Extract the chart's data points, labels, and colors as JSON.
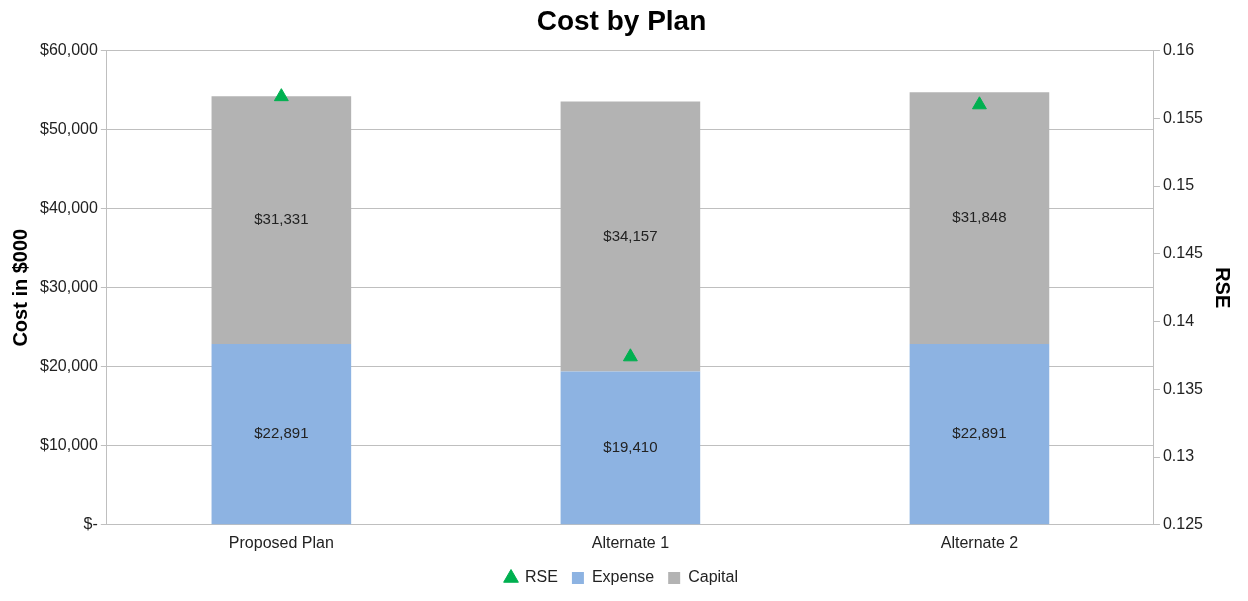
{
  "chart_data": {
    "type": "bar",
    "title": "Cost by Plan",
    "ylabel": "Cost in $000",
    "y2label": "RSE",
    "categories": [
      "Proposed Plan",
      "Alternate 1",
      "Alternate 2"
    ],
    "stacked": true,
    "series": [
      {
        "name": "Expense",
        "color": "#8db3e2",
        "values": [
          22891,
          19410,
          22891
        ],
        "value_labels": [
          "$22,891",
          "$19,410",
          "$22,891"
        ]
      },
      {
        "name": "Capital",
        "color": "#b3b3b3",
        "values": [
          31331,
          34157,
          31848
        ],
        "value_labels": [
          "$31,331",
          "$34,157",
          "$31,848"
        ]
      },
      {
        "name": "RSE",
        "type": "scatter",
        "axis": "y2",
        "marker": "triangle",
        "color": "#00b050",
        "x": [
          "Proposed Plan",
          "Alternate 1",
          "Alternate 2"
        ],
        "values": [
          0.1566,
          0.1374,
          0.156
        ]
      }
    ],
    "ylim": [
      0,
      60000
    ],
    "yticks": [
      {
        "value": 0,
        "label": "$-"
      },
      {
        "value": 10000,
        "label": "$10,000"
      },
      {
        "value": 20000,
        "label": "$20,000"
      },
      {
        "value": 30000,
        "label": "$30,000"
      },
      {
        "value": 40000,
        "label": "$40,000"
      },
      {
        "value": 50000,
        "label": "$50,000"
      },
      {
        "value": 60000,
        "label": "$60,000"
      }
    ],
    "y2lim": [
      0.125,
      0.16
    ],
    "y2ticks": [
      0.125,
      0.13,
      0.135,
      0.14,
      0.145,
      0.15,
      0.155,
      0.16
    ],
    "grid": "y",
    "legend": "bottom"
  }
}
